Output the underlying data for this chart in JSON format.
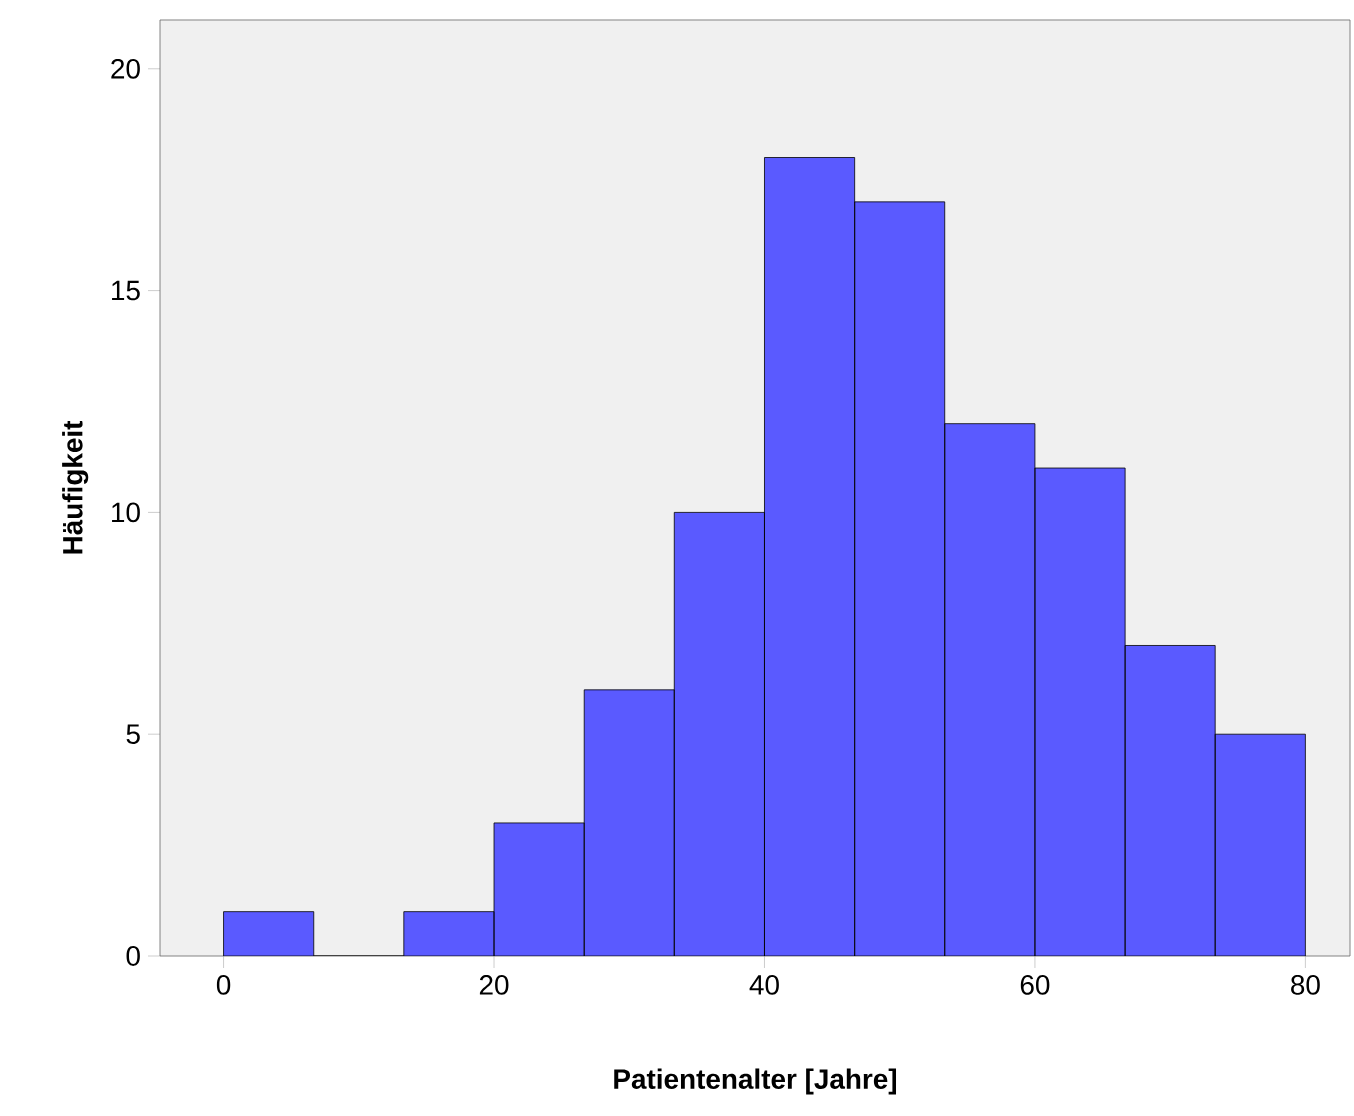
{
  "chart_data": {
    "type": "histogram",
    "xlabel": "Patientenalter [Jahre]",
    "ylabel": "Häufigkeit",
    "bins": [
      0,
      6.67,
      13.33,
      20,
      26.67,
      33.33,
      40,
      46.67,
      53.33,
      60,
      66.67,
      73.33,
      80
    ],
    "values": [
      1,
      0,
      1,
      3,
      6,
      10,
      18,
      17,
      12,
      11,
      7,
      5
    ],
    "color": "#5a5aff",
    "xlim": [
      -4.7,
      83.3
    ],
    "xticks": [
      0,
      20,
      40,
      60,
      80
    ],
    "ylim": [
      0,
      21.1
    ],
    "yticks": [
      0,
      5,
      10,
      15,
      20
    ]
  }
}
